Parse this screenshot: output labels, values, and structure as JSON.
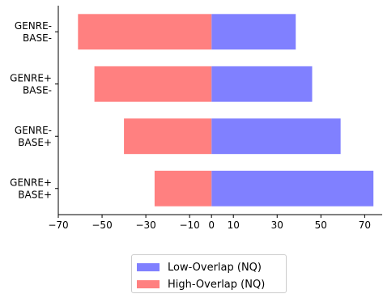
{
  "chart_data": {
    "type": "bar",
    "orientation": "horizontal",
    "stacked": "diverging",
    "categories": [
      [
        "GENRE-",
        "BASE-"
      ],
      [
        "GENRE+",
        "BASE-"
      ],
      [
        "GENRE-",
        "BASE+"
      ],
      [
        "GENRE+",
        "BASE+"
      ]
    ],
    "series": [
      {
        "name": "Low-Overlap (NQ)",
        "values": [
          38.5,
          46,
          59,
          74
        ],
        "color": "#8080ff"
      },
      {
        "name": "High-Overlap (NQ)",
        "values": [
          -61,
          -53.5,
          -40,
          -26
        ],
        "color": "#ff8080"
      }
    ],
    "xlim": [
      -70,
      78
    ],
    "xticks": [
      -70,
      -50,
      -30,
      -10,
      0,
      10,
      30,
      50,
      70
    ],
    "xticklabels": [
      "−70",
      "−50",
      "−30",
      "−10",
      "0",
      "10",
      "30",
      "50",
      "70"
    ],
    "xlabel": "",
    "ylabel": "",
    "title": "",
    "grid": false,
    "legend_position": "bottom-center"
  }
}
